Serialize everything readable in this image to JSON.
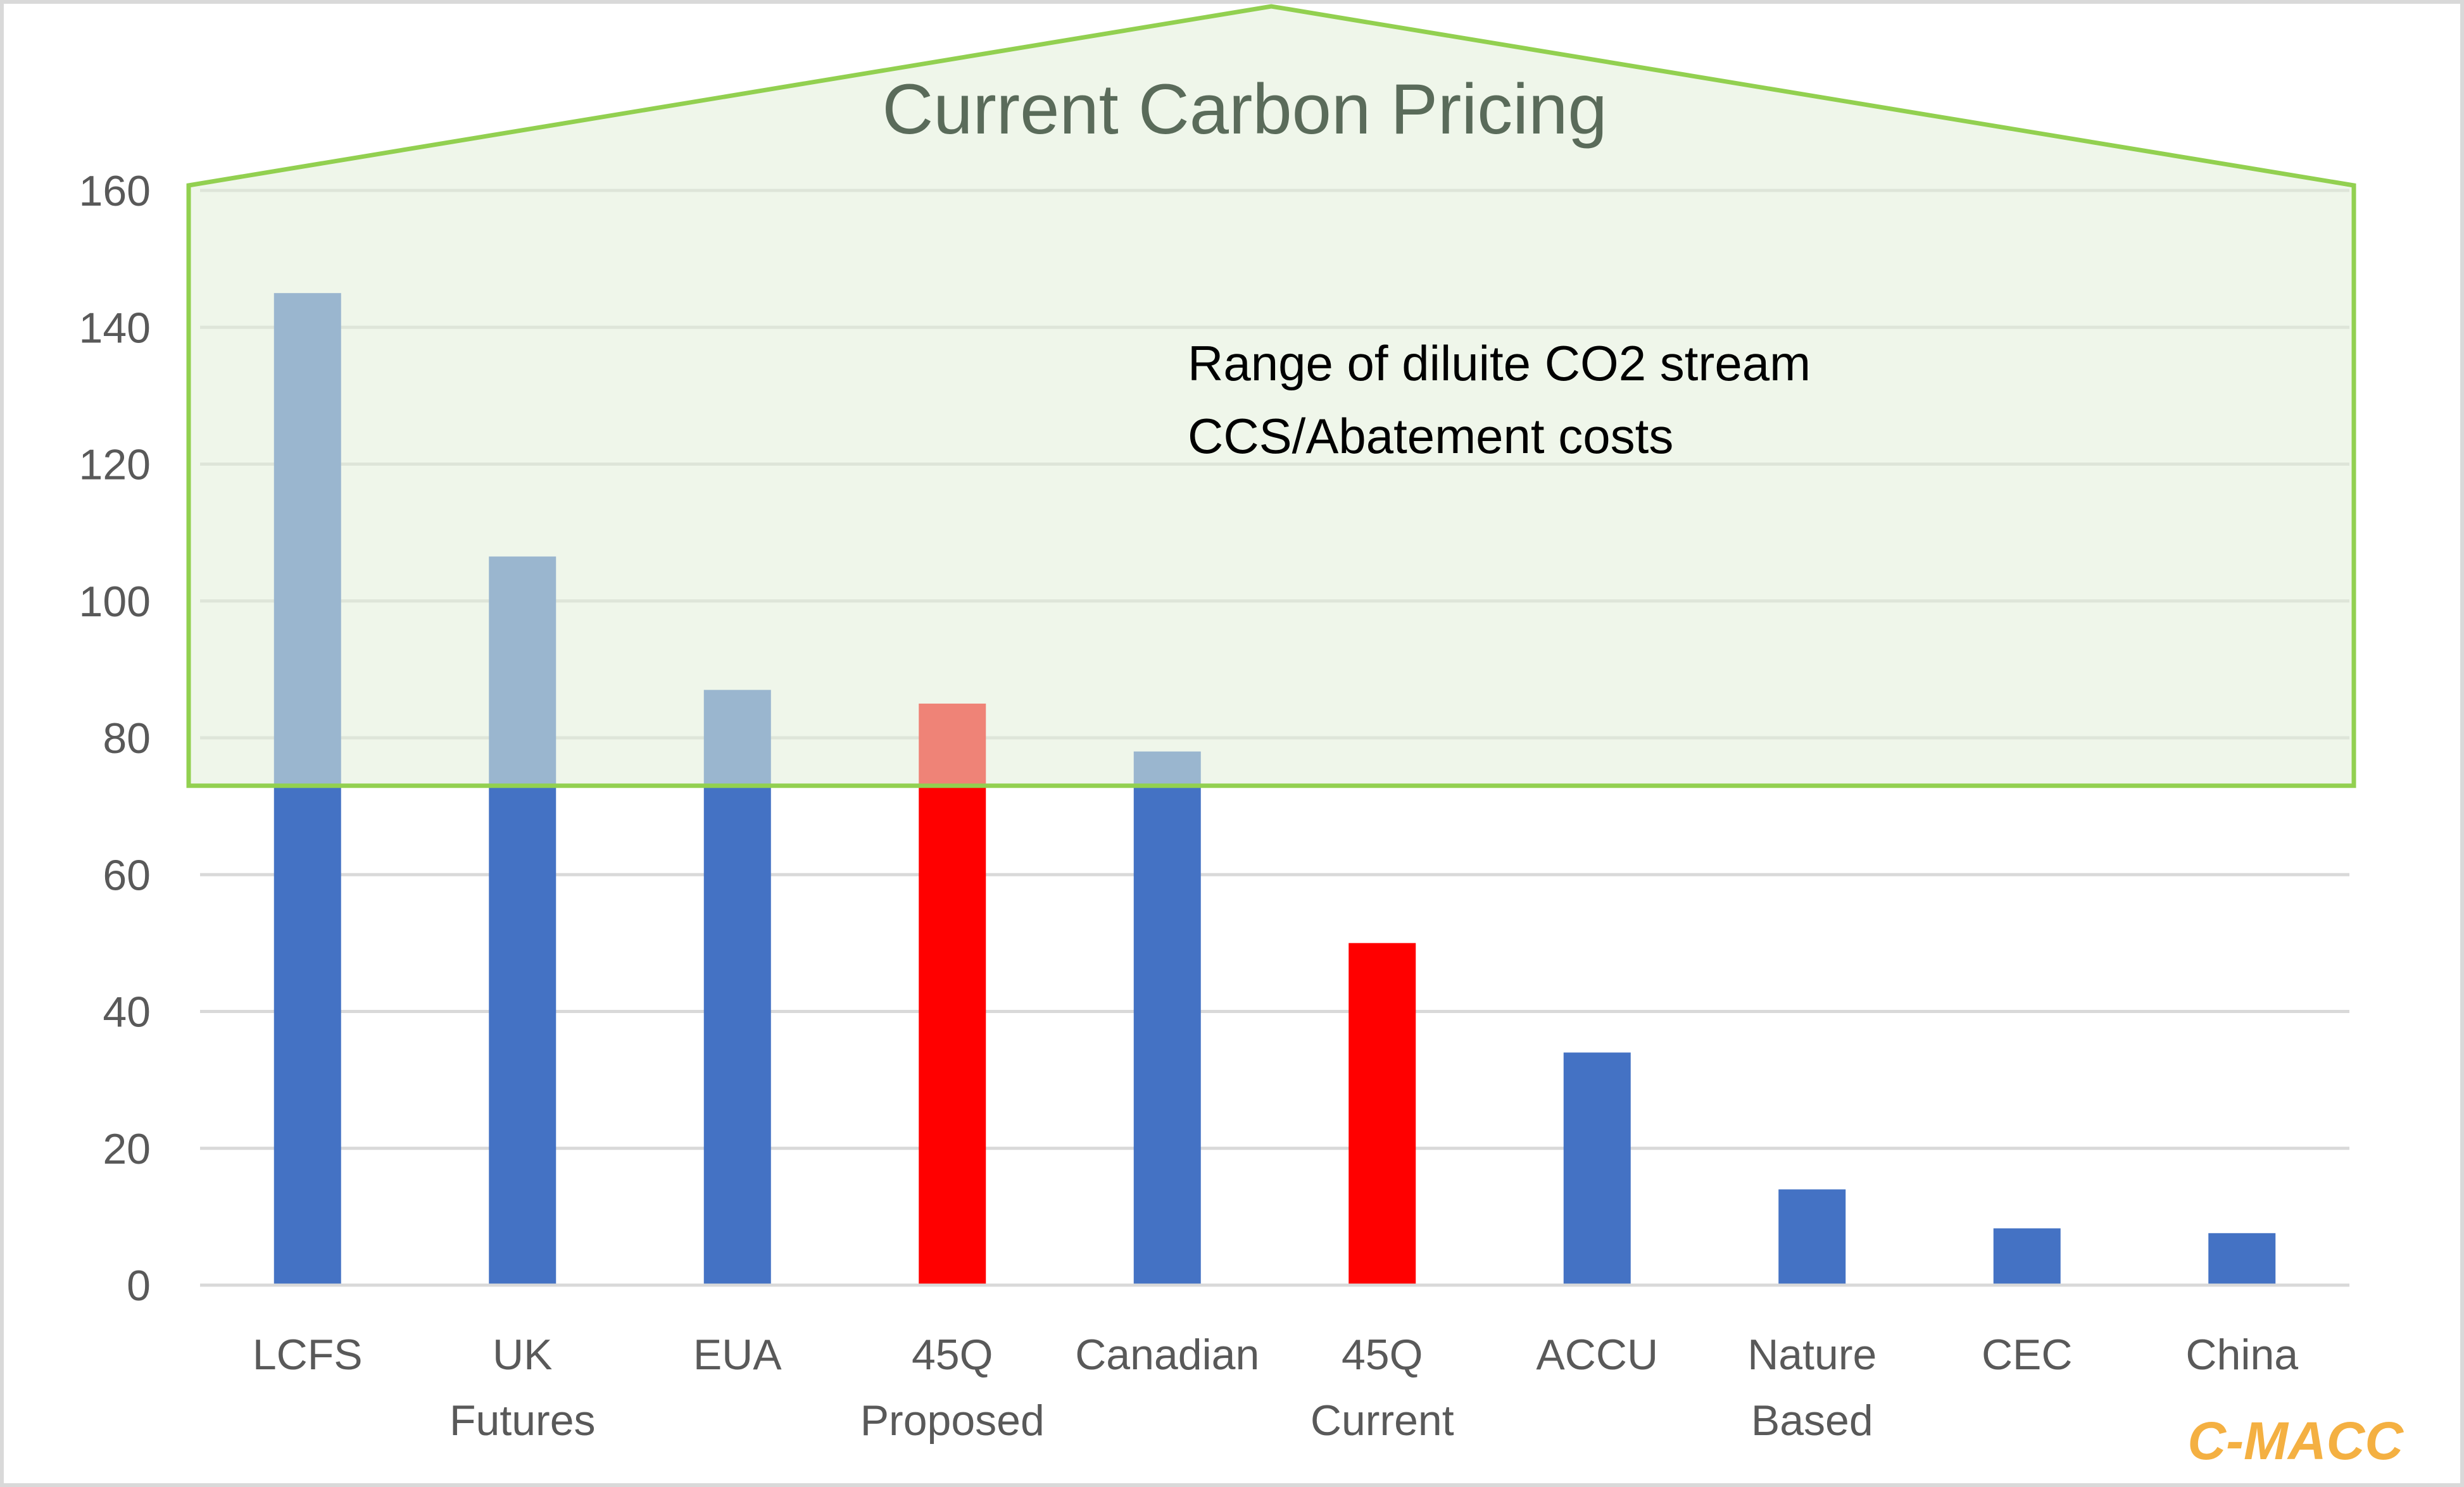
{
  "chart_data": {
    "type": "bar",
    "title": "Current Carbon Pricing",
    "categories": [
      [
        "LCFS"
      ],
      [
        "UK",
        "Futures"
      ],
      [
        "EUA"
      ],
      [
        "45Q",
        "Proposed"
      ],
      [
        "Canadian"
      ],
      [
        "45Q",
        "Current"
      ],
      [
        "ACCU"
      ],
      [
        "Nature",
        "Based"
      ],
      [
        "CEC"
      ],
      [
        "China"
      ]
    ],
    "values": [
      145,
      106.5,
      87,
      85,
      78,
      50,
      34,
      14,
      8.3,
      7.6
    ],
    "bar_colors": [
      "#4472c4",
      "#4472c4",
      "#4472c4",
      "#ff0000",
      "#4472c4",
      "#ff0000",
      "#4472c4",
      "#4472c4",
      "#4472c4",
      "#4472c4"
    ],
    "ylim": [
      0,
      160
    ],
    "yticks": [
      0,
      20,
      40,
      60,
      80,
      100,
      120,
      140,
      160
    ],
    "grid": true,
    "shaded_range": {
      "ymin": 73,
      "ymax": 160,
      "fill": "#e2efd9",
      "stroke": "#92d050",
      "label_lines": [
        "Range of diluite CO2 stream",
        "CCS/Abatement costs"
      ]
    },
    "watermark": {
      "text": "C-MACC",
      "color": "#f4b042"
    }
  }
}
